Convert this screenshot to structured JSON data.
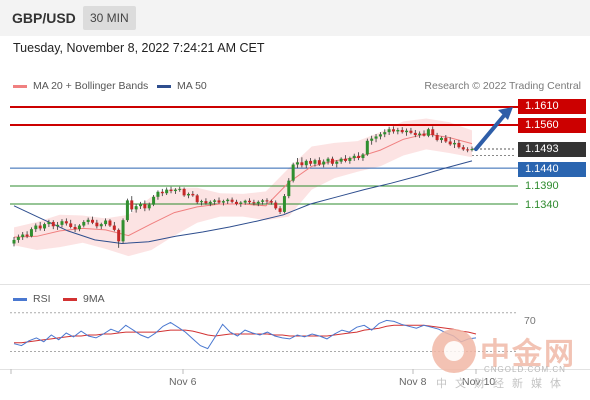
{
  "header": {
    "symbol": "GBP/USD",
    "interval": "30 MIN"
  },
  "timestamp": "Tuesday, November 8, 2022 7:24:21 AM CET",
  "legend": {
    "items": [
      {
        "label": "MA 20 + Bollinger Bands",
        "color": "#f08080"
      },
      {
        "label": "MA 50",
        "color": "#2e4e8e"
      }
    ],
    "credit": "Research © 2022 Trading Central"
  },
  "colors": {
    "resistance": "#cc0000",
    "current": "#333333",
    "pivot": "#2a65b0",
    "support": "#2e8b2e",
    "arrow": "#2e5ea8",
    "band_fill": "#fbdada",
    "ma50": "#2e4e8e",
    "ma20": "#f08080",
    "rsi": "#4a78d0",
    "rsi_ma": "#d23232"
  },
  "chart_data": [
    {
      "type": "candlestick",
      "title": "GBP/USD",
      "interval": "30 MIN",
      "ylim": [
        1.1195,
        1.1655
      ],
      "x_ticks": [
        "Nov 6",
        "Nov 8",
        "Nov 10"
      ],
      "levels": [
        {
          "value": 1.161,
          "label": "1.1610",
          "kind": "resistance"
        },
        {
          "value": 1.156,
          "label": "1.1560",
          "kind": "resistance"
        },
        {
          "value": 1.1493,
          "label": "1.1493",
          "kind": "current"
        },
        {
          "value": 1.144,
          "label": "1.1440",
          "kind": "pivot"
        },
        {
          "value": 1.139,
          "label": "1.1390",
          "kind": "support"
        },
        {
          "value": 1.134,
          "label": "1.1340",
          "kind": "support"
        }
      ],
      "candles": [
        [
          1.123,
          1.1248,
          1.1222,
          1.124
        ],
        [
          1.124,
          1.1255,
          1.1232,
          1.1248
        ],
        [
          1.1248,
          1.1262,
          1.124,
          1.1255
        ],
        [
          1.1255,
          1.1264,
          1.1245,
          1.125
        ],
        [
          1.125,
          1.1275,
          1.1247,
          1.127
        ],
        [
          1.127,
          1.1286,
          1.1262,
          1.128
        ],
        [
          1.128,
          1.129,
          1.1266,
          1.1272
        ],
        [
          1.1272,
          1.1288,
          1.1265,
          1.1284
        ],
        [
          1.1284,
          1.1296,
          1.1276,
          1.129
        ],
        [
          1.129,
          1.1295,
          1.127,
          1.1278
        ],
        [
          1.1278,
          1.129,
          1.1268,
          1.1282
        ],
        [
          1.1282,
          1.1298,
          1.1275,
          1.1292
        ],
        [
          1.1292,
          1.13,
          1.128,
          1.1286
        ],
        [
          1.1286,
          1.1296,
          1.1272,
          1.1276
        ],
        [
          1.1276,
          1.1284,
          1.1262,
          1.127
        ],
        [
          1.127,
          1.1284,
          1.1264,
          1.128
        ],
        [
          1.128,
          1.1295,
          1.1275,
          1.129
        ],
        [
          1.129,
          1.1302,
          1.1283,
          1.1296
        ],
        [
          1.1296,
          1.1305,
          1.1284,
          1.1288
        ],
        [
          1.1288,
          1.1296,
          1.1272,
          1.1278
        ],
        [
          1.1278,
          1.1288,
          1.127,
          1.1284
        ],
        [
          1.1284,
          1.13,
          1.1278,
          1.1294
        ],
        [
          1.1294,
          1.1298,
          1.1276,
          1.128
        ],
        [
          1.128,
          1.129,
          1.1264,
          1.1268
        ],
        [
          1.1268,
          1.1272,
          1.1218,
          1.1236
        ],
        [
          1.1236,
          1.13,
          1.123,
          1.1295
        ],
        [
          1.1295,
          1.1355,
          1.129,
          1.135
        ],
        [
          1.135,
          1.1362,
          1.1318,
          1.1325
        ],
        [
          1.1325,
          1.134,
          1.1316,
          1.1334
        ],
        [
          1.1334,
          1.1346,
          1.1326,
          1.134
        ],
        [
          1.134,
          1.135,
          1.132,
          1.1328
        ],
        [
          1.1328,
          1.1344,
          1.1322,
          1.1338
        ],
        [
          1.1338,
          1.1365,
          1.1334,
          1.136
        ],
        [
          1.136,
          1.1378,
          1.1352,
          1.1374
        ],
        [
          1.1374,
          1.1382,
          1.1362,
          1.137
        ],
        [
          1.137,
          1.1386,
          1.1365,
          1.138
        ],
        [
          1.138,
          1.1388,
          1.137,
          1.1376
        ],
        [
          1.1376,
          1.1384,
          1.1368,
          1.138
        ],
        [
          1.138,
          1.1388,
          1.1374,
          1.1382
        ],
        [
          1.1382,
          1.1386,
          1.136,
          1.1364
        ],
        [
          1.1364,
          1.1372,
          1.1356,
          1.1368
        ],
        [
          1.1368,
          1.1376,
          1.136,
          1.1364
        ],
        [
          1.1364,
          1.1368,
          1.134,
          1.1345
        ],
        [
          1.1345,
          1.1352,
          1.1336,
          1.1348
        ],
        [
          1.1348,
          1.1356,
          1.1338,
          1.1342
        ],
        [
          1.1342,
          1.135,
          1.1334,
          1.1346
        ],
        [
          1.1346,
          1.1354,
          1.1338,
          1.135
        ],
        [
          1.135,
          1.1358,
          1.134,
          1.1344
        ],
        [
          1.1344,
          1.1352,
          1.1336,
          1.1348
        ],
        [
          1.1348,
          1.1356,
          1.134,
          1.1352
        ],
        [
          1.1352,
          1.1358,
          1.1342,
          1.1346
        ],
        [
          1.1346,
          1.1352,
          1.1336,
          1.134
        ],
        [
          1.134,
          1.1348,
          1.1332,
          1.1344
        ],
        [
          1.1344,
          1.1352,
          1.1338,
          1.1349
        ],
        [
          1.1349,
          1.1356,
          1.134,
          1.1345
        ],
        [
          1.1345,
          1.1352,
          1.1336,
          1.1342
        ],
        [
          1.1342,
          1.135,
          1.1334,
          1.1346
        ],
        [
          1.1346,
          1.1354,
          1.1338,
          1.135
        ],
        [
          1.135,
          1.1356,
          1.134,
          1.1348
        ],
        [
          1.1348,
          1.1352,
          1.1338,
          1.1344
        ],
        [
          1.1344,
          1.135,
          1.1324,
          1.1328
        ],
        [
          1.1328,
          1.1334,
          1.1312,
          1.1318
        ],
        [
          1.1318,
          1.1368,
          1.1314,
          1.1362
        ],
        [
          1.1362,
          1.1412,
          1.1356,
          1.1405
        ],
        [
          1.1405,
          1.1455,
          1.14,
          1.145
        ],
        [
          1.145,
          1.1468,
          1.144,
          1.1456
        ],
        [
          1.1456,
          1.147,
          1.1442,
          1.1448
        ],
        [
          1.1448,
          1.1464,
          1.144,
          1.146
        ],
        [
          1.146,
          1.1468,
          1.1446,
          1.1452
        ],
        [
          1.1452,
          1.1466,
          1.1444,
          1.1462
        ],
        [
          1.1462,
          1.147,
          1.1446,
          1.145
        ],
        [
          1.145,
          1.1464,
          1.1442,
          1.1458
        ],
        [
          1.1458,
          1.147,
          1.145,
          1.1466
        ],
        [
          1.1466,
          1.1472,
          1.1446,
          1.1452
        ],
        [
          1.1452,
          1.1462,
          1.1442,
          1.1458
        ],
        [
          1.1458,
          1.147,
          1.1452,
          1.1466
        ],
        [
          1.1466,
          1.1476,
          1.1456,
          1.146
        ],
        [
          1.146,
          1.1472,
          1.1452,
          1.1468
        ],
        [
          1.1468,
          1.148,
          1.146,
          1.1474
        ],
        [
          1.1474,
          1.1484,
          1.1462,
          1.1468
        ],
        [
          1.1468,
          1.1482,
          1.146,
          1.1478
        ],
        [
          1.1478,
          1.1522,
          1.1474,
          1.1516
        ],
        [
          1.1516,
          1.153,
          1.1505,
          1.1522
        ],
        [
          1.1522,
          1.1535,
          1.1512,
          1.1528
        ],
        [
          1.1528,
          1.154,
          1.152,
          1.1534
        ],
        [
          1.1534,
          1.1548,
          1.1526,
          1.154
        ],
        [
          1.154,
          1.1555,
          1.1532,
          1.1548
        ],
        [
          1.1548,
          1.1556,
          1.1536,
          1.1542
        ],
        [
          1.1542,
          1.1552,
          1.1534,
          1.1546
        ],
        [
          1.1546,
          1.1554,
          1.1536,
          1.154
        ],
        [
          1.154,
          1.155,
          1.153,
          1.1544
        ],
        [
          1.1544,
          1.1552,
          1.1534,
          1.1538
        ],
        [
          1.1538,
          1.1546,
          1.1526,
          1.1532
        ],
        [
          1.1532,
          1.1542,
          1.1524,
          1.1536
        ],
        [
          1.1536,
          1.1545,
          1.1528,
          1.153
        ],
        [
          1.153,
          1.1552,
          1.1526,
          1.1548
        ],
        [
          1.1548,
          1.1556,
          1.1526,
          1.1532
        ],
        [
          1.1532,
          1.1538,
          1.1514,
          1.1518
        ],
        [
          1.1518,
          1.1528,
          1.151,
          1.1524
        ],
        [
          1.1524,
          1.1532,
          1.151,
          1.1514
        ],
        [
          1.1514,
          1.1526,
          1.1502,
          1.1506
        ],
        [
          1.1506,
          1.1518,
          1.1496,
          1.151
        ],
        [
          1.151,
          1.1518,
          1.1494,
          1.1498
        ],
        [
          1.1498,
          1.1504,
          1.1488,
          1.1492
        ],
        [
          1.1492,
          1.1498,
          1.1484,
          1.149
        ],
        [
          1.149,
          1.15,
          1.1486,
          1.1493
        ]
      ],
      "ma50": [
        1.1335,
        1.13,
        1.1265,
        1.124,
        1.123,
        1.1235,
        1.125,
        1.1262,
        1.1276,
        1.1292,
        1.131,
        1.134,
        1.136,
        1.138,
        1.1398,
        1.1418,
        1.144,
        1.146
      ],
      "ma20": [
        1.1248,
        1.125,
        1.1265,
        1.1272,
        1.1268,
        1.1252,
        1.1285,
        1.1316,
        1.1332,
        1.134,
        1.134,
        1.1335,
        1.14,
        1.1445,
        1.146,
        1.147,
        1.149,
        1.152,
        1.1535,
        1.1525,
        1.1508
      ],
      "band_upper": [
        1.1275,
        1.129,
        1.131,
        1.1308,
        1.13,
        1.131,
        1.136,
        1.1385,
        1.1385,
        1.137,
        1.1368,
        1.1375,
        1.144,
        1.15,
        1.151,
        1.1515,
        1.154,
        1.157,
        1.1578,
        1.1568,
        1.1545
      ],
      "band_lower": [
        1.1225,
        1.1212,
        1.122,
        1.1232,
        1.1215,
        1.1195,
        1.1212,
        1.1252,
        1.1288,
        1.1305,
        1.1305,
        1.1295,
        1.1305,
        1.138,
        1.1412,
        1.143,
        1.1445,
        1.1475,
        1.1492,
        1.1482,
        1.147
      ]
    },
    {
      "type": "line",
      "title": "RSI",
      "ylim": [
        15,
        80
      ],
      "y_ticks": [
        70
      ],
      "series": [
        {
          "name": "RSI",
          "values": [
            38,
            36,
            41,
            44,
            40,
            47,
            42,
            49,
            45,
            51,
            46,
            44,
            48,
            53,
            50,
            57,
            52,
            47,
            44,
            49,
            56,
            60,
            55,
            50,
            43,
            36,
            33,
            45,
            58,
            50,
            46,
            52,
            49,
            47,
            50,
            46,
            44,
            43,
            47,
            45,
            48,
            46,
            43,
            48,
            52,
            50,
            55,
            57,
            52,
            59,
            62,
            61,
            58,
            56,
            54,
            57,
            55,
            53,
            49,
            46,
            40,
            43,
            44
          ]
        },
        {
          "name": "9MA",
          "values": [
            39,
            39,
            40,
            41,
            42,
            43,
            44,
            45,
            46,
            46,
            47,
            47,
            48,
            48,
            49,
            50,
            50,
            50,
            50,
            50,
            51,
            52,
            52,
            52,
            51,
            49,
            47,
            46,
            47,
            48,
            48,
            48,
            48,
            48,
            48,
            47,
            47,
            46,
            46,
            46,
            46,
            46,
            46,
            47,
            48,
            49,
            50,
            52,
            53,
            54,
            56,
            57,
            57,
            57,
            57,
            57,
            56,
            55,
            54,
            53,
            51,
            50,
            48
          ]
        }
      ]
    }
  ]
}
